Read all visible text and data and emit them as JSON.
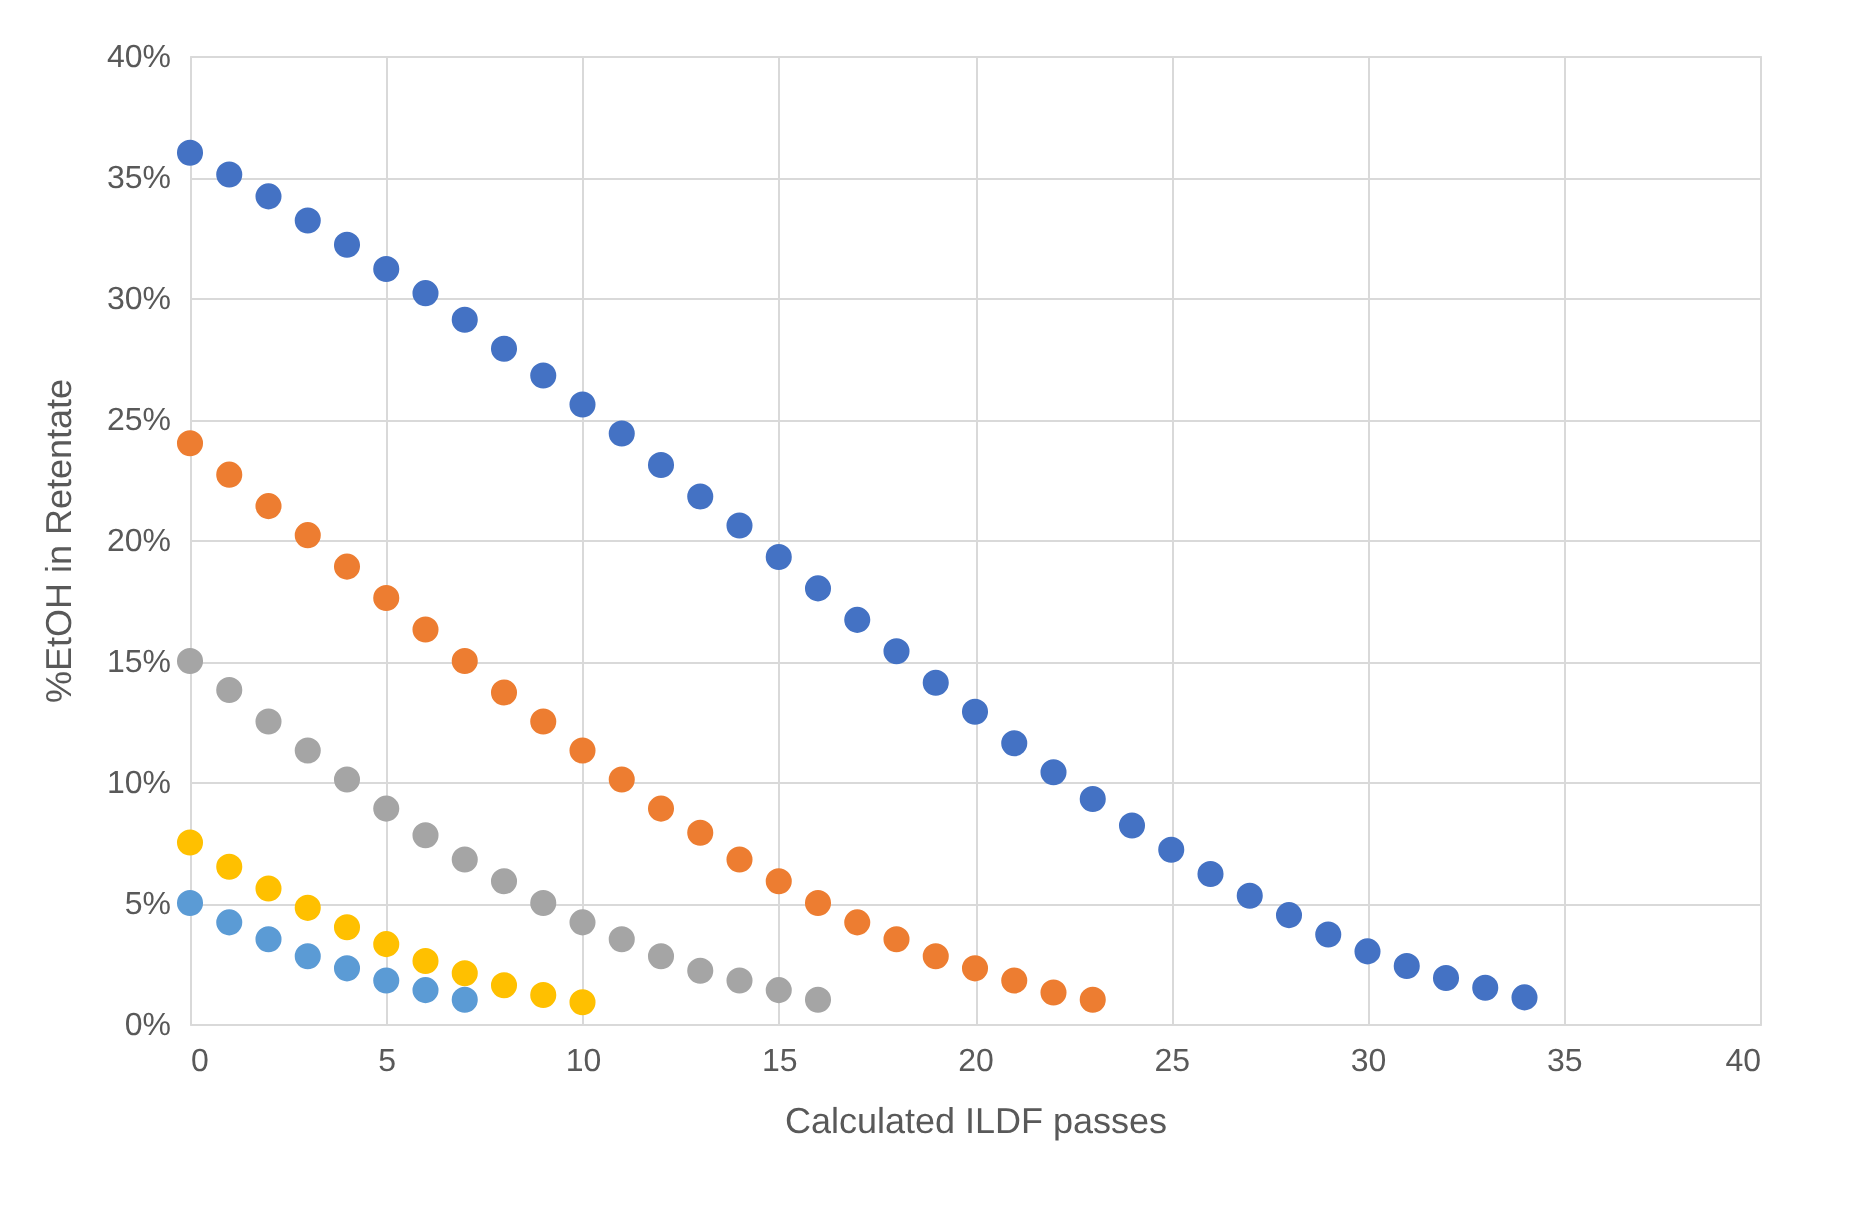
{
  "chart_data": {
    "type": "scatter",
    "xlabel": "Calculated ILDF passes",
    "ylabel": "%EtOH in Retentate",
    "xlim": [
      0,
      40
    ],
    "xticks": [
      0,
      5,
      10,
      15,
      20,
      25,
      30,
      35,
      40
    ],
    "ylim": [
      0,
      40
    ],
    "yticks": [
      {
        "value": 0,
        "label": "0%"
      },
      {
        "value": 5,
        "label": "5%"
      },
      {
        "value": 10,
        "label": "10%"
      },
      {
        "value": 15,
        "label": "15%"
      },
      {
        "value": 20,
        "label": "20%"
      },
      {
        "value": 25,
        "label": "25%"
      },
      {
        "value": 30,
        "label": "30%"
      },
      {
        "value": 35,
        "label": "35%"
      },
      {
        "value": 40,
        "label": "40%"
      }
    ],
    "grid": true,
    "legend": false,
    "marker": "circle",
    "series": [
      {
        "color": "#4472c4",
        "x": [
          0,
          1,
          2,
          3,
          4,
          5,
          6,
          7,
          8,
          9,
          10,
          11,
          12,
          13,
          14,
          15,
          16,
          17,
          18,
          19,
          20,
          21,
          22,
          23,
          24,
          25,
          26,
          27,
          28,
          29,
          30,
          31,
          32,
          33,
          34
        ],
        "values": [
          36.0,
          35.1,
          34.2,
          33.2,
          32.2,
          31.2,
          30.2,
          29.1,
          27.9,
          26.8,
          25.6,
          24.4,
          23.1,
          21.8,
          20.6,
          19.3,
          18.0,
          16.7,
          15.4,
          14.1,
          12.9,
          11.6,
          10.4,
          9.3,
          8.2,
          7.2,
          6.2,
          5.3,
          4.5,
          3.7,
          3.0,
          2.4,
          1.9,
          1.5,
          1.1
        ]
      },
      {
        "color": "#ed7d31",
        "x": [
          0,
          1,
          2,
          3,
          4,
          5,
          6,
          7,
          8,
          9,
          10,
          11,
          12,
          13,
          14,
          15,
          16,
          17,
          18,
          19,
          20,
          21,
          22,
          23
        ],
        "values": [
          24.0,
          22.7,
          21.4,
          20.2,
          18.9,
          17.6,
          16.3,
          15.0,
          13.7,
          12.5,
          11.3,
          10.1,
          8.9,
          7.9,
          6.8,
          5.9,
          5.0,
          4.2,
          3.5,
          2.8,
          2.3,
          1.8,
          1.3,
          1.0
        ]
      },
      {
        "color": "#a5a5a5",
        "x": [
          0,
          1,
          2,
          3,
          4,
          5,
          6,
          7,
          8,
          9,
          10,
          11,
          12,
          13,
          14,
          15,
          16
        ],
        "values": [
          15.0,
          13.8,
          12.5,
          11.3,
          10.1,
          8.9,
          7.8,
          6.8,
          5.9,
          5.0,
          4.2,
          3.5,
          2.8,
          2.2,
          1.8,
          1.4,
          1.0
        ]
      },
      {
        "color": "#ffc000",
        "x": [
          0,
          1,
          2,
          3,
          4,
          5,
          6,
          7,
          8,
          9,
          10
        ],
        "values": [
          7.5,
          6.5,
          5.6,
          4.8,
          4.0,
          3.3,
          2.6,
          2.1,
          1.6,
          1.2,
          0.9
        ]
      },
      {
        "color": "#5b9bd5",
        "x": [
          0,
          1,
          2,
          3,
          4,
          5,
          6,
          7
        ],
        "values": [
          5.0,
          4.2,
          3.5,
          2.8,
          2.3,
          1.8,
          1.4,
          1.0
        ]
      }
    ]
  }
}
